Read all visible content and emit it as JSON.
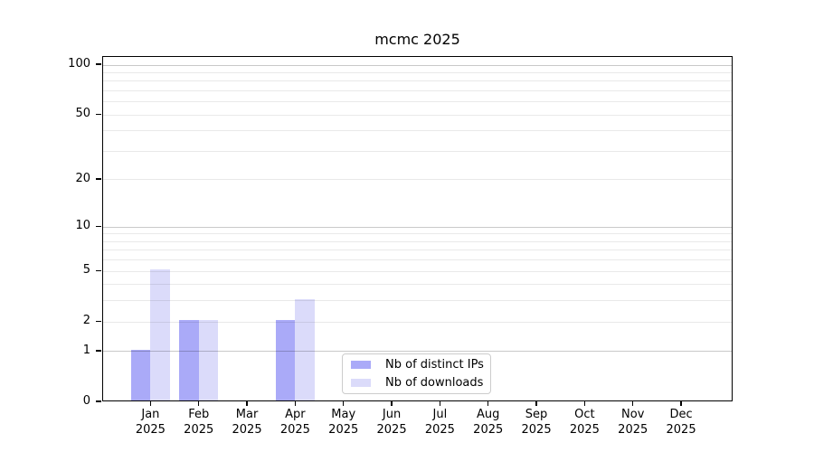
{
  "chart_data": {
    "type": "bar",
    "title": "mcmc 2025",
    "categories": [
      {
        "month": "Jan",
        "year": "2025"
      },
      {
        "month": "Feb",
        "year": "2025"
      },
      {
        "month": "Mar",
        "year": "2025"
      },
      {
        "month": "Apr",
        "year": "2025"
      },
      {
        "month": "May",
        "year": "2025"
      },
      {
        "month": "Jun",
        "year": "2025"
      },
      {
        "month": "Jul",
        "year": "2025"
      },
      {
        "month": "Aug",
        "year": "2025"
      },
      {
        "month": "Sep",
        "year": "2025"
      },
      {
        "month": "Oct",
        "year": "2025"
      },
      {
        "month": "Nov",
        "year": "2025"
      },
      {
        "month": "Dec",
        "year": "2025"
      }
    ],
    "series": [
      {
        "name": "Nb of distinct IPs",
        "color": "#aaaaf8",
        "values": [
          1,
          2,
          0,
          2,
          0,
          0,
          0,
          0,
          0,
          0,
          0,
          0
        ]
      },
      {
        "name": "Nb of downloads",
        "color": "#dbdbfa",
        "values": [
          5,
          2,
          0,
          3,
          0,
          0,
          0,
          0,
          0,
          0,
          0,
          0
        ]
      }
    ],
    "yscale": "log10(1+x)",
    "ylim": [
      0,
      112
    ],
    "y_tick_labels": [
      0,
      1,
      2,
      5,
      10,
      20,
      50,
      100
    ],
    "y_gridlines_major": [
      1,
      10,
      100
    ],
    "y_gridlines_minor": [
      2,
      3,
      4,
      5,
      6,
      7,
      8,
      9,
      20,
      30,
      40,
      50,
      60,
      70,
      80,
      90
    ],
    "grid": true,
    "legend_position": "lower center"
  }
}
